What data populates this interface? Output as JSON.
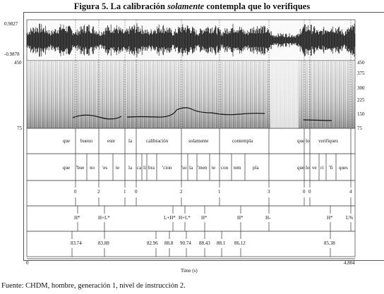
{
  "figure": {
    "title_prefix": "Figura 5. La calibración ",
    "title_emph": "solamente",
    "title_suffix": " contempla que lo verifiques",
    "source": "Fuente: CHDM, hombre, generación 1, nivel de instrucción 2."
  },
  "waveform": {
    "max_label": "0.9827",
    "min_label": "-0.9878"
  },
  "spectrogram": {
    "left_top": "450",
    "left_bottom": "75",
    "right_ticks": [
      "450",
      "375",
      "300",
      "225",
      "150",
      "75"
    ]
  },
  "time_axis": {
    "start": "0",
    "end": "4.804",
    "label": "Time (s)"
  },
  "tiers": {
    "words": [
      "que",
      "bueno",
      "este",
      "la",
      "calibración",
      "solamente",
      "contempla",
      "que",
      "lo",
      "verifiques"
    ],
    "syllables": [
      "que",
      "'bue",
      "no",
      "'es",
      "te",
      "la",
      "ca",
      "li",
      "bra",
      "'cion",
      "'so",
      "la",
      "'men",
      "te",
      "con",
      "tem",
      "pla",
      "que",
      "lo",
      "ve",
      "ri",
      "'fi",
      "ques"
    ],
    "breaks": [
      "0",
      "2",
      "1",
      "0",
      "2",
      "1",
      "3",
      "0",
      "0",
      "4"
    ],
    "tones": [
      "H*",
      "H+L*",
      "L+H*",
      "H+L*",
      "H*",
      "H*",
      "H-",
      "H*",
      "L%"
    ],
    "values": [
      "83.74",
      "83.88",
      "82.96",
      "88.8",
      "90.74",
      "88.43",
      "88.1",
      "86.12",
      "85.38"
    ]
  }
}
